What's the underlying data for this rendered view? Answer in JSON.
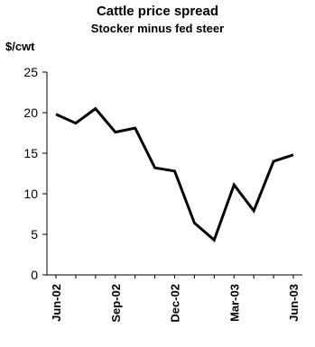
{
  "chart_data": {
    "type": "line",
    "title": "Cattle price spread",
    "subtitle": "Stocker minus fed steer",
    "ylabel": "$/cwt",
    "xlabel": "",
    "ylim": [
      0,
      25
    ],
    "yticks": [
      0,
      5,
      10,
      15,
      20,
      25
    ],
    "x": [
      "Jun-02",
      "Jul-02",
      "Aug-02",
      "Sep-02",
      "Oct-02",
      "Nov-02",
      "Dec-02",
      "Jan-03",
      "Feb-03",
      "Mar-03",
      "Apr-03",
      "May-03",
      "Jun-03"
    ],
    "xtick_labels": [
      "Jun-02",
      "Sep-02",
      "Dec-02",
      "Mar-03",
      "Jun-03"
    ],
    "series": [
      {
        "values": [
          19.8,
          18.7,
          20.5,
          17.6,
          18.1,
          13.2,
          12.8,
          6.4,
          4.3,
          11.1,
          7.9,
          14.0,
          14.8
        ]
      }
    ],
    "colors": {
      "line": "#000000",
      "axis": "#000000"
    },
    "grid": false,
    "legend": "none"
  }
}
